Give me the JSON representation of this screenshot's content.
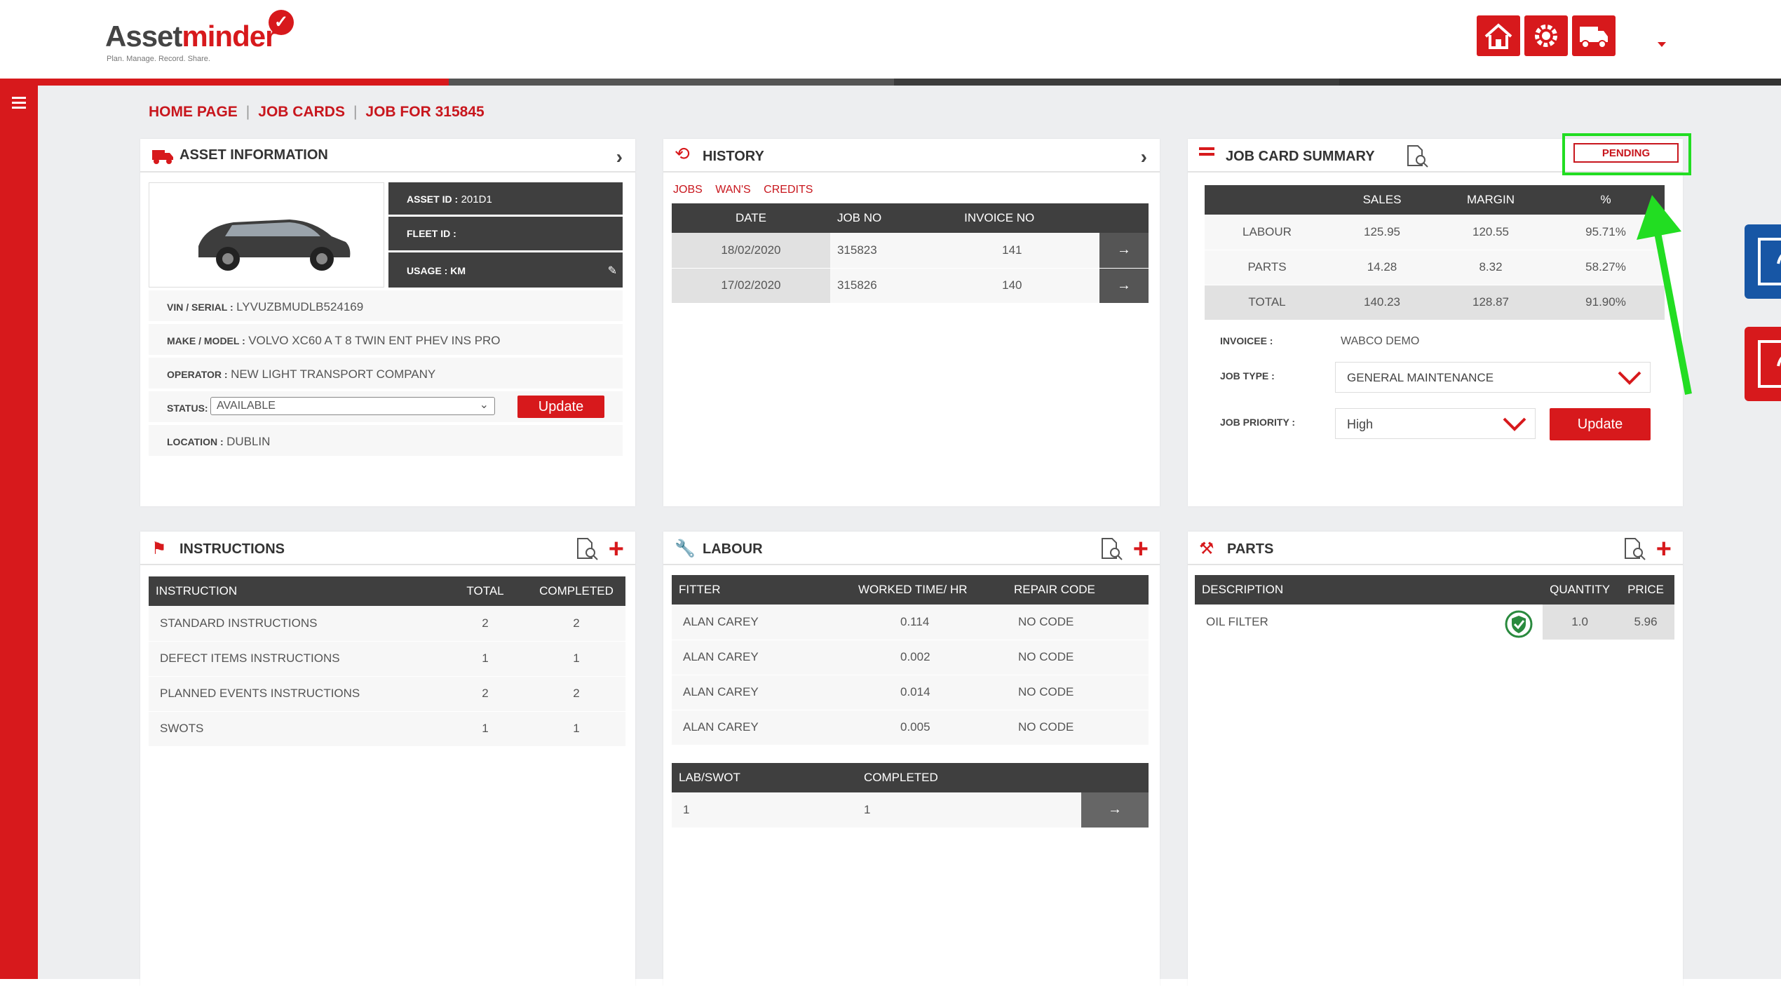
{
  "app": {
    "logo_main": "Asset",
    "logo_accent": "minder",
    "tagline": "Plan. Manage. Record. Share."
  },
  "colors": {
    "brand_red": "#d7191c",
    "dark": "#3f3f3f",
    "blue": "#1756a5",
    "highlight_green": "#22dd22"
  },
  "header": {
    "icons": [
      "home-icon",
      "settings-gear-icon",
      "truck-icon"
    ]
  },
  "breadcrumb": [
    "HOME PAGE",
    "JOB CARDS",
    "JOB FOR 315845"
  ],
  "asset": {
    "title": "ASSET INFORMATION",
    "asset_id_label": "ASSET ID :",
    "asset_id": "201D1",
    "fleet_id_label": "FLEET ID :",
    "fleet_id": "",
    "usage_label": "USAGE : KM",
    "vin_label": "VIN / SERIAL :",
    "vin": "LYVUZBMUDLB524169",
    "make_label": "MAKE / MODEL :",
    "make": "VOLVO XC60 A T 8 TWIN ENT PHEV INS PRO",
    "operator_label": "OPERATOR :",
    "operator": "NEW LIGHT TRANSPORT COMPANY",
    "status_label": "STATUS:",
    "status": "AVAILABLE",
    "update_label": "Update",
    "location_label": "LOCATION :",
    "location": "DUBLIN"
  },
  "history": {
    "title": "HISTORY",
    "tabs": [
      "JOBS",
      "WAN'S",
      "CREDITS"
    ],
    "headers": [
      "DATE",
      "JOB NO",
      "INVOICE NO"
    ],
    "rows": [
      {
        "date": "18/02/2020",
        "job": "315823",
        "invoice": "141"
      },
      {
        "date": "17/02/2020",
        "job": "315826",
        "invoice": "140"
      }
    ]
  },
  "summary": {
    "title": "JOB CARD SUMMARY",
    "status": "PENDING",
    "headers": [
      "SALES",
      "MARGIN",
      "%"
    ],
    "rows": [
      {
        "name": "LABOUR",
        "sales": "125.95",
        "margin": "120.55",
        "pct": "95.71%"
      },
      {
        "name": "PARTS",
        "sales": "14.28",
        "margin": "8.32",
        "pct": "58.27%"
      },
      {
        "name": "TOTAL",
        "sales": "140.23",
        "margin": "128.87",
        "pct": "91.90%"
      }
    ],
    "invoicee_label": "INVOICEE :",
    "invoicee": "WABCO DEMO",
    "job_type_label": "JOB TYPE :",
    "job_type": "GENERAL MAINTENANCE",
    "job_priority_label": "JOB PRIORITY :",
    "job_priority": "High",
    "update_label": "Update"
  },
  "instructions": {
    "title": "INSTRUCTIONS",
    "headers": [
      "INSTRUCTION",
      "TOTAL",
      "COMPLETED"
    ],
    "rows": [
      {
        "name": "STANDARD INSTRUCTIONS",
        "total": "2",
        "completed": "2"
      },
      {
        "name": "DEFECT ITEMS INSTRUCTIONS",
        "total": "1",
        "completed": "1"
      },
      {
        "name": "PLANNED EVENTS INSTRUCTIONS",
        "total": "2",
        "completed": "2"
      },
      {
        "name": "SWOTS",
        "total": "1",
        "completed": "1"
      }
    ]
  },
  "labour": {
    "title": "LABOUR",
    "headers": [
      "FITTER",
      "WORKED TIME/ HR",
      "REPAIR CODE"
    ],
    "rows": [
      {
        "fitter": "ALAN CAREY",
        "time": "0.114",
        "code": "NO CODE"
      },
      {
        "fitter": "ALAN CAREY",
        "time": "0.002",
        "code": "NO CODE"
      },
      {
        "fitter": "ALAN CAREY",
        "time": "0.014",
        "code": "NO CODE"
      },
      {
        "fitter": "ALAN CAREY",
        "time": "0.005",
        "code": "NO CODE"
      }
    ],
    "swot_headers": [
      "LAB/SWOT",
      "COMPLETED"
    ],
    "swot_row": {
      "lab": "1",
      "completed": "1"
    }
  },
  "parts": {
    "title": "PARTS",
    "headers": [
      "DESCRIPTION",
      "QUANTITY",
      "PRICE"
    ],
    "rows": [
      {
        "desc": "OIL FILTER",
        "qty": "1.0",
        "price": "5.96"
      }
    ]
  }
}
